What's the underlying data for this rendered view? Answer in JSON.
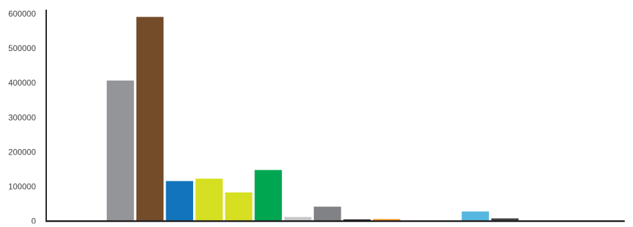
{
  "chart_data": {
    "type": "bar",
    "title": "",
    "xlabel": "",
    "ylabel": "",
    "ylim": [
      0,
      600000
    ],
    "y_ticks": [
      0,
      100000,
      200000,
      300000,
      400000,
      500000,
      600000
    ],
    "y_tick_labels": [
      "0",
      "100000",
      "200000",
      "300000",
      "400000",
      "500000",
      "600000"
    ],
    "grid": false,
    "legend": "none",
    "bars": [
      {
        "value": 0,
        "color": "#FFFFFF"
      },
      {
        "value": 0,
        "color": "#FFFFFF"
      },
      {
        "value": 407000,
        "color": "#939598"
      },
      {
        "value": 591000,
        "color": "#754C29"
      },
      {
        "value": 116000,
        "color": "#1174BC"
      },
      {
        "value": 123000,
        "color": "#D7DF23"
      },
      {
        "value": 83000,
        "color": "#D7DF23"
      },
      {
        "value": 148000,
        "color": "#00A651"
      },
      {
        "value": 12000,
        "color": "#C7C8CA"
      },
      {
        "value": 42000,
        "color": "#808285"
      },
      {
        "value": 5000,
        "color": "#231F20"
      },
      {
        "value": 6000,
        "color": "#F7941D"
      },
      {
        "value": 1500,
        "color": "#C7B299"
      },
      {
        "value": 0,
        "color": "#FFFFFF"
      },
      {
        "value": 28000,
        "color": "#56B7E0"
      },
      {
        "value": 8000,
        "color": "#414042"
      },
      {
        "value": 1000,
        "color": "#A7A9AC"
      },
      {
        "value": 1000,
        "color": "#BCBEC0"
      },
      {
        "value": 0,
        "color": "#FFFFFF"
      }
    ]
  }
}
